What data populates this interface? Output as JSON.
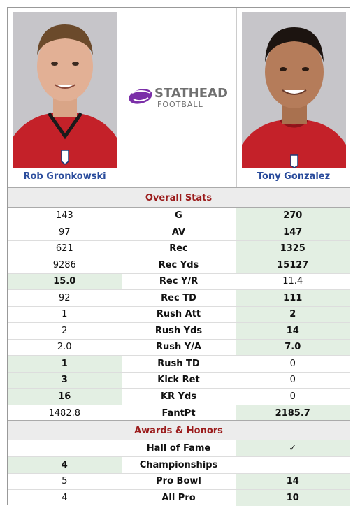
{
  "players": {
    "left": {
      "name": "Rob Gronkowski"
    },
    "right": {
      "name": "Tony Gonzalez"
    }
  },
  "logo": {
    "line1": "STATHEAD",
    "line2": "FOOTBALL"
  },
  "sections": {
    "overall": "Overall Stats",
    "awards": "Awards & Honors"
  },
  "overall_rows": [
    {
      "stat": "G",
      "left": "143",
      "right": "270",
      "winner": "right"
    },
    {
      "stat": "AV",
      "left": "97",
      "right": "147",
      "winner": "right"
    },
    {
      "stat": "Rec",
      "left": "621",
      "right": "1325",
      "winner": "right"
    },
    {
      "stat": "Rec Yds",
      "left": "9286",
      "right": "15127",
      "winner": "right"
    },
    {
      "stat": "Rec Y/R",
      "left": "15.0",
      "right": "11.4",
      "winner": "left"
    },
    {
      "stat": "Rec TD",
      "left": "92",
      "right": "111",
      "winner": "right"
    },
    {
      "stat": "Rush Att",
      "left": "1",
      "right": "2",
      "winner": "right"
    },
    {
      "stat": "Rush Yds",
      "left": "2",
      "right": "14",
      "winner": "right"
    },
    {
      "stat": "Rush Y/A",
      "left": "2.0",
      "right": "7.0",
      "winner": "right"
    },
    {
      "stat": "Rush TD",
      "left": "1",
      "right": "0",
      "winner": "left"
    },
    {
      "stat": "Kick Ret",
      "left": "3",
      "right": "0",
      "winner": "left"
    },
    {
      "stat": "KR Yds",
      "left": "16",
      "right": "0",
      "winner": "left"
    },
    {
      "stat": "FantPt",
      "left": "1482.8",
      "right": "2185.7",
      "winner": "right"
    }
  ],
  "award_rows": [
    {
      "stat": "Hall of Fame",
      "left": "",
      "right": "✓",
      "winner": "right"
    },
    {
      "stat": "Championships",
      "left": "4",
      "right": "",
      "winner": "left"
    },
    {
      "stat": "Pro Bowl",
      "left": "5",
      "right": "14",
      "winner": "right"
    },
    {
      "stat": "All Pro",
      "left": "4",
      "right": "10",
      "winner": "right"
    }
  ],
  "colors": {
    "accent_red": "#9b1c1c",
    "link_blue": "#2a4c9c",
    "win_bg": "#e3efe3",
    "logo_purple": "#7b2fa8"
  }
}
